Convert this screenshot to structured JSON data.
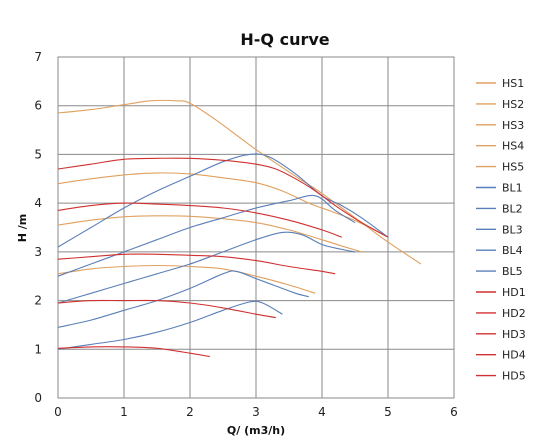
{
  "chart_data": {
    "type": "line",
    "title": "H-Q  curve",
    "xlabel": "Q/ (m3/h)",
    "ylabel": "H /m",
    "xlim": [
      0,
      6
    ],
    "ylim": [
      0,
      7
    ],
    "xticks": [
      "0",
      "1",
      "2",
      "3",
      "4",
      "5",
      "6"
    ],
    "yticks": [
      "0",
      "1",
      "2",
      "3",
      "4",
      "5",
      "6",
      "7"
    ],
    "grid": true,
    "legend_position": "right",
    "series": [
      {
        "name": "HS1",
        "color": "#e0a060",
        "x": [
          0,
          0.5,
          1,
          1.4,
          1.8,
          2.0,
          2.4,
          3.0,
          3.6,
          4.0,
          4.6,
          5.0,
          5.5
        ],
        "y": [
          5.85,
          5.92,
          6.02,
          6.1,
          6.1,
          6.05,
          5.7,
          5.1,
          4.55,
          4.2,
          3.6,
          3.2,
          2.75
        ]
      },
      {
        "name": "HS2",
        "color": "#e0a060",
        "x": [
          0,
          0.5,
          1,
          1.5,
          2.0,
          2.5,
          3.0,
          3.4,
          3.8,
          4.1,
          4.4,
          4.8,
          5.0
        ],
        "y": [
          4.4,
          4.5,
          4.58,
          4.62,
          4.6,
          4.52,
          4.42,
          4.25,
          4.0,
          3.85,
          3.7,
          3.45,
          3.3
        ]
      },
      {
        "name": "HS3",
        "color": "#e0a060",
        "x": [
          0,
          0.5,
          1,
          1.5,
          2.0,
          2.5,
          3.0,
          3.5,
          4.0,
          4.3,
          4.6
        ],
        "y": [
          3.55,
          3.65,
          3.72,
          3.74,
          3.73,
          3.68,
          3.6,
          3.45,
          3.25,
          3.12,
          3.0
        ]
      },
      {
        "name": "HS4",
        "color": "#e0a060",
        "x": [
          0,
          0.5,
          1,
          1.5,
          2.0,
          2.5,
          3.0,
          3.5,
          3.9
        ],
        "y": [
          2.55,
          2.65,
          2.7,
          2.72,
          2.7,
          2.65,
          2.5,
          2.32,
          2.15
        ]
      },
      {
        "name": "HS5",
        "color": "#e0a060",
        "x": [],
        "y": []
      },
      {
        "name": "BL1",
        "color": "#5a7fb8",
        "x": [
          0,
          0.5,
          1,
          1.5,
          2.0,
          2.5,
          2.9,
          3.2,
          3.6,
          4.0,
          4.3,
          4.6,
          5.0
        ],
        "y": [
          3.1,
          3.5,
          3.9,
          4.25,
          4.55,
          4.85,
          5.0,
          4.95,
          4.6,
          4.15,
          3.95,
          3.7,
          3.3
        ]
      },
      {
        "name": "BL2",
        "color": "#5a7fb8",
        "x": [
          0,
          0.5,
          1,
          1.5,
          2.0,
          2.5,
          3.0,
          3.5,
          3.9,
          4.2,
          4.5
        ],
        "y": [
          2.5,
          2.75,
          3.0,
          3.25,
          3.5,
          3.7,
          3.9,
          4.05,
          4.15,
          3.85,
          3.6
        ]
      },
      {
        "name": "BL3",
        "color": "#5a7fb8",
        "x": [
          0,
          0.5,
          1,
          1.5,
          2.0,
          2.5,
          3.0,
          3.4,
          3.7,
          4.0,
          4.3,
          4.5
        ],
        "y": [
          1.95,
          2.15,
          2.35,
          2.55,
          2.75,
          3.0,
          3.25,
          3.4,
          3.35,
          3.15,
          3.05,
          3.0
        ]
      },
      {
        "name": "BL4",
        "color": "#5a7fb8",
        "x": [
          0,
          0.5,
          1,
          1.5,
          2.0,
          2.5,
          2.7,
          3.0,
          3.3,
          3.6,
          3.8
        ],
        "y": [
          1.45,
          1.6,
          1.8,
          2.0,
          2.25,
          2.55,
          2.6,
          2.45,
          2.3,
          2.15,
          2.08
        ]
      },
      {
        "name": "BL5",
        "color": "#5a7fb8",
        "x": [
          0,
          0.5,
          1,
          1.5,
          2.0,
          2.5,
          2.9,
          3.1,
          3.4
        ],
        "y": [
          1.0,
          1.1,
          1.2,
          1.35,
          1.55,
          1.8,
          1.97,
          1.95,
          1.72
        ]
      },
      {
        "name": "HD1",
        "color": "#d03030",
        "x": [
          0,
          0.5,
          1,
          1.5,
          2.0,
          2.5,
          3.0,
          3.3,
          3.6,
          3.9,
          4.2,
          4.6,
          5.0
        ],
        "y": [
          4.7,
          4.8,
          4.9,
          4.92,
          4.92,
          4.88,
          4.8,
          4.7,
          4.5,
          4.25,
          3.95,
          3.6,
          3.3
        ]
      },
      {
        "name": "HD2",
        "color": "#d03030",
        "x": [
          0,
          0.5,
          1,
          1.5,
          2.0,
          2.5,
          3.0,
          3.5,
          4.0,
          4.3
        ],
        "y": [
          3.85,
          3.95,
          4.0,
          3.98,
          3.95,
          3.9,
          3.8,
          3.65,
          3.45,
          3.3
        ]
      },
      {
        "name": "HD3",
        "color": "#d03030",
        "x": [
          0,
          0.5,
          1,
          1.5,
          2.0,
          2.5,
          3.0,
          3.5,
          4.0,
          4.2
        ],
        "y": [
          2.85,
          2.9,
          2.95,
          2.95,
          2.93,
          2.9,
          2.82,
          2.7,
          2.6,
          2.55
        ]
      },
      {
        "name": "HD4",
        "color": "#d03030",
        "x": [
          0,
          0.5,
          1,
          1.5,
          2.0,
          2.5,
          3.0,
          3.3
        ],
        "y": [
          1.95,
          2.0,
          2.0,
          2.0,
          1.95,
          1.85,
          1.72,
          1.65
        ]
      },
      {
        "name": "HD5",
        "color": "#d03030",
        "x": [
          0,
          0.5,
          1,
          1.5,
          2.0,
          2.3
        ],
        "y": [
          1.02,
          1.05,
          1.05,
          1.02,
          0.92,
          0.85
        ]
      }
    ]
  }
}
